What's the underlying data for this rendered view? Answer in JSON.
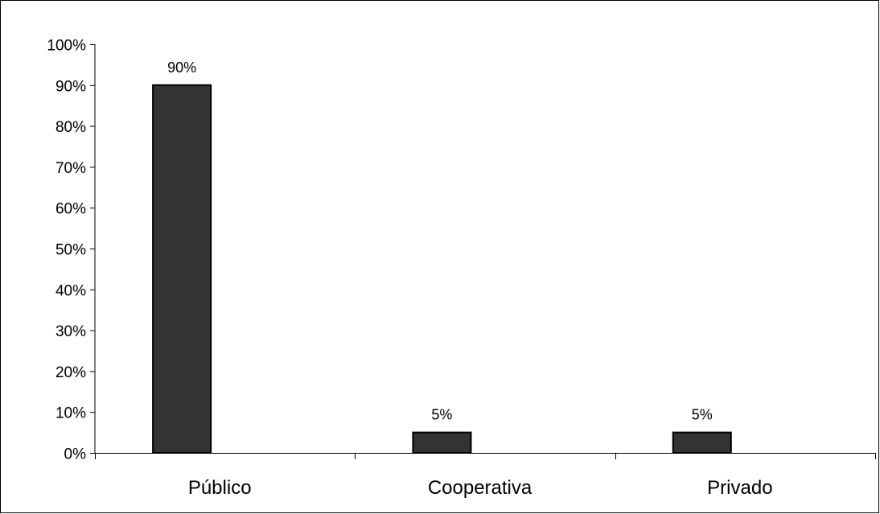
{
  "chart_data": {
    "type": "bar",
    "title": "",
    "xlabel": "",
    "ylabel": "",
    "categories": [
      "Público",
      "Cooperativa",
      "Privado"
    ],
    "values": [
      90,
      5,
      5
    ],
    "data_labels": [
      "90%",
      "5%",
      "5%"
    ],
    "ylim": [
      0,
      100
    ],
    "yticks": [
      0,
      10,
      20,
      30,
      40,
      50,
      60,
      70,
      80,
      90,
      100
    ],
    "ytick_labels": [
      "0%",
      "10%",
      "20%",
      "30%",
      "40%",
      "50%",
      "60%",
      "70%",
      "80%",
      "90%",
      "100%"
    ],
    "grid": false,
    "legend": "none",
    "bar_color": "#333333",
    "bar_edge_color": "#000000"
  }
}
